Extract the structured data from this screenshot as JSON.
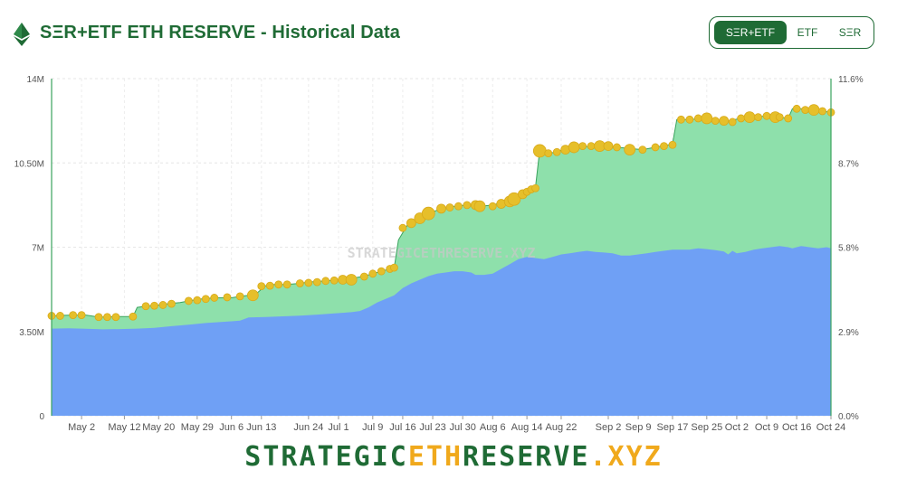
{
  "header": {
    "title": "SΞR+ETF ETH RESERVE - Historical Data",
    "logo_icon": "ethereum-icon",
    "toggle": [
      {
        "label": "SΞR+ETF",
        "active": true
      },
      {
        "label": "ETF",
        "active": false
      },
      {
        "label": "SΞR",
        "active": false
      }
    ]
  },
  "footer": {
    "brand_part1": "STRATEGIC",
    "brand_part2": "ETH",
    "brand_part3": "RESERVE",
    "brand_part4": ".XYZ"
  },
  "colors": {
    "primary": "#1f6b35",
    "accent": "#f0a91c",
    "etf_area": "#8ee0ab",
    "ser_area": "#6fa0f5",
    "bubble": "#e6bf2a"
  },
  "chart_data": {
    "type": "area",
    "watermark": "STRATEGICETHRESERVE.XYZ",
    "grid": true,
    "left_axis": {
      "ticks": [
        "0",
        "3.50M",
        "7M",
        "10.50M",
        "14M"
      ],
      "range": [
        0,
        14000000
      ]
    },
    "right_axis": {
      "ticks": [
        "0.0%",
        "2.9%",
        "5.8%",
        "8.7%",
        "11.6%"
      ],
      "range": [
        0,
        11.6
      ]
    },
    "x_range": [
      0,
      182
    ],
    "x_ticks": [
      {
        "label": "May 2",
        "x": 7
      },
      {
        "label": "May 12",
        "x": 17
      },
      {
        "label": "May 20",
        "x": 25
      },
      {
        "label": "May 29",
        "x": 34
      },
      {
        "label": "Jun 6",
        "x": 42
      },
      {
        "label": "Jun 13",
        "x": 49
      },
      {
        "label": "Jun 24",
        "x": 60
      },
      {
        "label": "Jul 1",
        "x": 67
      },
      {
        "label": "Jul 9",
        "x": 75
      },
      {
        "label": "Jul 16",
        "x": 82
      },
      {
        "label": "Jul 23",
        "x": 89
      },
      {
        "label": "Jul 30",
        "x": 96
      },
      {
        "label": "Aug 6",
        "x": 103
      },
      {
        "label": "Aug 14",
        "x": 111
      },
      {
        "label": "Aug 22",
        "x": 119
      },
      {
        "label": "Sep 2",
        "x": 130
      },
      {
        "label": "Sep 9",
        "x": 137
      },
      {
        "label": "Sep 17",
        "x": 145
      },
      {
        "label": "Sep 25",
        "x": 153
      },
      {
        "label": "Oct 2",
        "x": 160
      },
      {
        "label": "Oct 9",
        "x": 167
      },
      {
        "label": "Oct 16",
        "x": 174
      },
      {
        "label": "Oct 24",
        "x": 182
      }
    ],
    "series": [
      {
        "name": "SER+ETF",
        "points": [
          [
            0,
            4150000
          ],
          [
            1,
            4150000
          ],
          [
            2,
            4160000
          ],
          [
            3,
            4170000
          ],
          [
            5,
            4180000
          ],
          [
            7,
            4180000
          ],
          [
            8,
            4180000
          ],
          [
            11,
            4100000
          ],
          [
            13,
            4100000
          ],
          [
            15,
            4120000
          ],
          [
            19,
            4120000
          ],
          [
            20,
            4500000
          ],
          [
            22,
            4550000
          ],
          [
            25,
            4600000
          ],
          [
            27,
            4650000
          ],
          [
            30,
            4700000
          ],
          [
            33,
            4800000
          ],
          [
            35,
            4850000
          ],
          [
            38,
            4900000
          ],
          [
            40,
            4900000
          ],
          [
            42,
            4900000
          ],
          [
            44,
            4960000
          ],
          [
            46,
            5000000
          ],
          [
            48,
            5100000
          ],
          [
            50,
            5400000
          ],
          [
            52,
            5450000
          ],
          [
            55,
            5450000
          ],
          [
            58,
            5500000
          ],
          [
            60,
            5550000
          ],
          [
            64,
            5600000
          ],
          [
            67,
            5650000
          ],
          [
            70,
            5700000
          ],
          [
            73,
            5800000
          ],
          [
            75,
            5900000
          ],
          [
            77,
            6000000
          ],
          [
            79,
            6100000
          ],
          [
            80,
            6150000
          ],
          [
            81,
            7300000
          ],
          [
            83,
            7900000
          ],
          [
            86,
            8200000
          ],
          [
            88,
            8400000
          ],
          [
            91,
            8600000
          ],
          [
            94,
            8700000
          ],
          [
            97,
            8750000
          ],
          [
            100,
            8700000
          ],
          [
            103,
            8750000
          ],
          [
            105,
            8850000
          ],
          [
            108,
            9000000
          ],
          [
            111,
            9300000
          ],
          [
            112,
            9400000
          ],
          [
            113,
            9500000
          ],
          [
            114,
            11050000
          ],
          [
            116,
            10900000
          ],
          [
            118,
            10950000
          ],
          [
            120,
            11100000
          ],
          [
            123,
            11150000
          ],
          [
            126,
            11200000
          ],
          [
            129,
            11200000
          ],
          [
            132,
            11150000
          ],
          [
            135,
            11100000
          ],
          [
            138,
            11050000
          ],
          [
            141,
            11150000
          ],
          [
            144,
            11250000
          ],
          [
            145,
            11300000
          ],
          [
            146,
            12300000
          ],
          [
            149,
            12300000
          ],
          [
            152,
            12350000
          ],
          [
            155,
            12250000
          ],
          [
            158,
            12250000
          ],
          [
            161,
            12350000
          ],
          [
            164,
            12400000
          ],
          [
            167,
            12450000
          ],
          [
            170,
            12400000
          ],
          [
            172,
            12350000
          ],
          [
            173,
            12750000
          ],
          [
            175,
            12750000
          ],
          [
            178,
            12700000
          ],
          [
            180,
            12650000
          ],
          [
            182,
            12600000
          ]
        ]
      },
      {
        "name": "SER",
        "points": [
          [
            0,
            3620000
          ],
          [
            4,
            3630000
          ],
          [
            8,
            3610000
          ],
          [
            12,
            3590000
          ],
          [
            16,
            3600000
          ],
          [
            20,
            3620000
          ],
          [
            24,
            3650000
          ],
          [
            28,
            3720000
          ],
          [
            32,
            3780000
          ],
          [
            36,
            3850000
          ],
          [
            40,
            3900000
          ],
          [
            44,
            3950000
          ],
          [
            46,
            4080000
          ],
          [
            50,
            4100000
          ],
          [
            54,
            4130000
          ],
          [
            58,
            4160000
          ],
          [
            62,
            4200000
          ],
          [
            66,
            4250000
          ],
          [
            70,
            4300000
          ],
          [
            72,
            4350000
          ],
          [
            74,
            4500000
          ],
          [
            76,
            4700000
          ],
          [
            78,
            4850000
          ],
          [
            80,
            5000000
          ],
          [
            82,
            5300000
          ],
          [
            84,
            5500000
          ],
          [
            86,
            5650000
          ],
          [
            88,
            5800000
          ],
          [
            90,
            5900000
          ],
          [
            92,
            5950000
          ],
          [
            94,
            6000000
          ],
          [
            96,
            6000000
          ],
          [
            98,
            5950000
          ],
          [
            99,
            5850000
          ],
          [
            101,
            5850000
          ],
          [
            103,
            5900000
          ],
          [
            105,
            6100000
          ],
          [
            107,
            6300000
          ],
          [
            109,
            6500000
          ],
          [
            111,
            6600000
          ],
          [
            113,
            6550000
          ],
          [
            115,
            6500000
          ],
          [
            117,
            6600000
          ],
          [
            119,
            6700000
          ],
          [
            121,
            6750000
          ],
          [
            123,
            6800000
          ],
          [
            125,
            6850000
          ],
          [
            127,
            6800000
          ],
          [
            129,
            6780000
          ],
          [
            131,
            6750000
          ],
          [
            133,
            6650000
          ],
          [
            135,
            6650000
          ],
          [
            137,
            6700000
          ],
          [
            139,
            6750000
          ],
          [
            141,
            6800000
          ],
          [
            143,
            6850000
          ],
          [
            145,
            6900000
          ],
          [
            147,
            6900000
          ],
          [
            149,
            6900000
          ],
          [
            151,
            6950000
          ],
          [
            153,
            6920000
          ],
          [
            155,
            6880000
          ],
          [
            157,
            6820000
          ],
          [
            158,
            6700000
          ],
          [
            159,
            6850000
          ],
          [
            160,
            6750000
          ],
          [
            162,
            6800000
          ],
          [
            164,
            6900000
          ],
          [
            166,
            6950000
          ],
          [
            168,
            7000000
          ],
          [
            170,
            7050000
          ],
          [
            172,
            7000000
          ],
          [
            173,
            6950000
          ],
          [
            175,
            7050000
          ],
          [
            177,
            7000000
          ],
          [
            179,
            6950000
          ],
          [
            181,
            7000000
          ],
          [
            182,
            6950000
          ]
        ]
      }
    ],
    "bubbles": [
      [
        0,
        4150000,
        4
      ],
      [
        2,
        4150000,
        4
      ],
      [
        5,
        4180000,
        4
      ],
      [
        7,
        4180000,
        4
      ],
      [
        11,
        4100000,
        4
      ],
      [
        13,
        4100000,
        4
      ],
      [
        15,
        4100000,
        4
      ],
      [
        19,
        4120000,
        4
      ],
      [
        22,
        4550000,
        4
      ],
      [
        24,
        4570000,
        4
      ],
      [
        26,
        4600000,
        4
      ],
      [
        28,
        4650000,
        4
      ],
      [
        32,
        4770000,
        4
      ],
      [
        34,
        4800000,
        4
      ],
      [
        36,
        4850000,
        4
      ],
      [
        38,
        4900000,
        4
      ],
      [
        41,
        4920000,
        4
      ],
      [
        44,
        4960000,
        4
      ],
      [
        47,
        5000000,
        6
      ],
      [
        49,
        5380000,
        4
      ],
      [
        51,
        5400000,
        4
      ],
      [
        53,
        5450000,
        4
      ],
      [
        55,
        5450000,
        4
      ],
      [
        58,
        5500000,
        4
      ],
      [
        60,
        5520000,
        4
      ],
      [
        62,
        5550000,
        4
      ],
      [
        64,
        5600000,
        4
      ],
      [
        66,
        5620000,
        4
      ],
      [
        68,
        5650000,
        5
      ],
      [
        70,
        5650000,
        6
      ],
      [
        73,
        5780000,
        4
      ],
      [
        75,
        5900000,
        4
      ],
      [
        77,
        6000000,
        4
      ],
      [
        79,
        6100000,
        4
      ],
      [
        80,
        6150000,
        4
      ],
      [
        82,
        7800000,
        4
      ],
      [
        84,
        8000000,
        5
      ],
      [
        86,
        8200000,
        6
      ],
      [
        88,
        8400000,
        7
      ],
      [
        91,
        8600000,
        5
      ],
      [
        93,
        8650000,
        4
      ],
      [
        95,
        8700000,
        4
      ],
      [
        97,
        8750000,
        4
      ],
      [
        99,
        8750000,
        5
      ],
      [
        100,
        8700000,
        6
      ],
      [
        103,
        8700000,
        4
      ],
      [
        105,
        8800000,
        5
      ],
      [
        107,
        8900000,
        6
      ],
      [
        108,
        9000000,
        7
      ],
      [
        110,
        9200000,
        5
      ],
      [
        111,
        9300000,
        4
      ],
      [
        112,
        9400000,
        4
      ],
      [
        113,
        9450000,
        4
      ],
      [
        114,
        11000000,
        7
      ],
      [
        116,
        10900000,
        4
      ],
      [
        118,
        10950000,
        4
      ],
      [
        120,
        11050000,
        5
      ],
      [
        122,
        11150000,
        6
      ],
      [
        124,
        11200000,
        4
      ],
      [
        126,
        11200000,
        4
      ],
      [
        128,
        11200000,
        6
      ],
      [
        130,
        11200000,
        5
      ],
      [
        132,
        11150000,
        4
      ],
      [
        135,
        11050000,
        6
      ],
      [
        138,
        11050000,
        4
      ],
      [
        141,
        11150000,
        4
      ],
      [
        143,
        11200000,
        4
      ],
      [
        145,
        11250000,
        4
      ],
      [
        147,
        12300000,
        4
      ],
      [
        149,
        12300000,
        4
      ],
      [
        151,
        12350000,
        4
      ],
      [
        153,
        12350000,
        6
      ],
      [
        155,
        12250000,
        4
      ],
      [
        157,
        12250000,
        5
      ],
      [
        159,
        12200000,
        4
      ],
      [
        161,
        12350000,
        4
      ],
      [
        163,
        12400000,
        6
      ],
      [
        165,
        12400000,
        4
      ],
      [
        167,
        12450000,
        4
      ],
      [
        169,
        12400000,
        6
      ],
      [
        170,
        12400000,
        4
      ],
      [
        172,
        12350000,
        4
      ],
      [
        174,
        12750000,
        4
      ],
      [
        176,
        12700000,
        4
      ],
      [
        178,
        12700000,
        6
      ],
      [
        180,
        12650000,
        4
      ],
      [
        182,
        12600000,
        4
      ]
    ]
  }
}
